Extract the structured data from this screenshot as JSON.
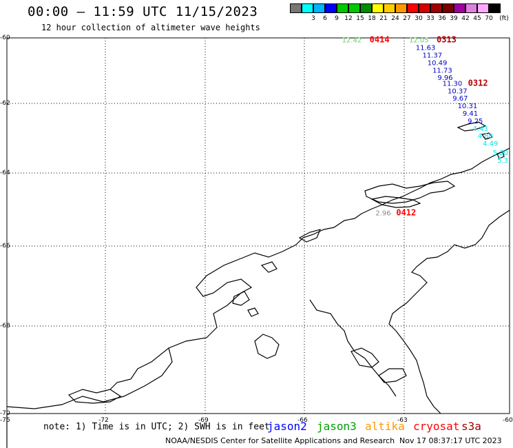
{
  "title": "00:00 – 11:59 UTC 11/15/2023",
  "subtitle": "12 hour collection of altimeter wave heights",
  "legend": {
    "unit": "(ft)",
    "swatches": [
      {
        "label": "",
        "color": "#777777"
      },
      {
        "label": "3",
        "color": "#00ffff"
      },
      {
        "label": "6",
        "color": "#00b4ff"
      },
      {
        "label": "9",
        "color": "#0000ff"
      },
      {
        "label": "12",
        "color": "#00c800"
      },
      {
        "label": "15",
        "color": "#00c800"
      },
      {
        "label": "18",
        "color": "#008c00"
      },
      {
        "label": "21",
        "color": "#ffff00"
      },
      {
        "label": "24",
        "color": "#ffcc00"
      },
      {
        "label": "27",
        "color": "#ff9900"
      },
      {
        "label": "30",
        "color": "#ff0000"
      },
      {
        "label": "33",
        "color": "#d20000"
      },
      {
        "label": "36",
        "color": "#a00000"
      },
      {
        "label": "39",
        "color": "#780000"
      },
      {
        "label": "42",
        "color": "#a000a0"
      },
      {
        "label": "45",
        "color": "#dc82dc"
      },
      {
        "label": "70",
        "color": "#ffaaff"
      },
      {
        "label": "",
        "color": "#000000"
      }
    ]
  },
  "axes": {
    "lat_labels": [
      "-60",
      "-62",
      "-64",
      "-66",
      "-68",
      "-70"
    ],
    "lon_labels": [
      "-75",
      "-72",
      "-69",
      "-66",
      "-63",
      "-60"
    ]
  },
  "tracks": [
    {
      "id": "0414",
      "color": "#ff0000",
      "points": [
        {
          "value": "12.42",
          "lon": -65.0,
          "lat": -60.05,
          "color": "#66cc66"
        }
      ]
    },
    {
      "id": "0313",
      "color": "#b40000",
      "points": [
        {
          "value": "12.05",
          "lon": -63.0,
          "lat": -60.05,
          "color": "#66cc66"
        },
        {
          "value": "11.63",
          "lon": -62.8,
          "lat": -60.25,
          "color": "#0000c8"
        },
        {
          "value": "11.37",
          "lon": -62.6,
          "lat": -60.45,
          "color": "#0000c8"
        },
        {
          "value": "10.49",
          "lon": -62.45,
          "lat": -60.65,
          "color": "#0000c8"
        },
        {
          "value": "11.73",
          "lon": -62.3,
          "lat": -60.85,
          "color": "#0000c8"
        },
        {
          "value": "9.96",
          "lon": -62.15,
          "lat": -61.05,
          "color": "#0000c8"
        }
      ]
    },
    {
      "id": "0312",
      "color": "#b40000",
      "points": [
        {
          "value": "11.30",
          "lon": -62.0,
          "lat": -61.2,
          "color": "#0000c8"
        },
        {
          "value": "10.37",
          "lon": -61.85,
          "lat": -61.4,
          "color": "#0000c8"
        },
        {
          "value": "9.67",
          "lon": -61.7,
          "lat": -61.6,
          "color": "#0000c8"
        },
        {
          "value": "10.31",
          "lon": -61.55,
          "lat": -61.8,
          "color": "#0000c8"
        },
        {
          "value": "9.41",
          "lon": -61.4,
          "lat": -62.0,
          "color": "#0000c8"
        },
        {
          "value": "9.25",
          "lon": -61.25,
          "lat": -62.2,
          "color": "#0000c8"
        },
        {
          "value": "4.43",
          "lon": -61.1,
          "lat": -62.4,
          "color": "#00e6e6"
        },
        {
          "value": "4.88",
          "lon": -60.95,
          "lat": -62.6,
          "color": "#00e6e6"
        },
        {
          "value": "4.49",
          "lon": -60.8,
          "lat": -62.8,
          "color": "#00e6e6"
        },
        {
          "value": "5.20",
          "lon": -60.5,
          "lat": -63.05,
          "color": "#00e6e6"
        },
        {
          "value": "5.3",
          "lon": -60.2,
          "lat": -63.25,
          "color": "#00e6e6"
        }
      ]
    },
    {
      "id": "0412",
      "color": "#ff0000",
      "points": [
        {
          "value": "2.96",
          "lon": -64.0,
          "lat": -64.65,
          "color": "#888888"
        }
      ]
    }
  ],
  "note": "note: 1) Time is in UTC; 2) SWH is in feet",
  "satellites": [
    {
      "name": "jason2",
      "color": "#0000ff"
    },
    {
      "name": "jason3",
      "color": "#00a000"
    },
    {
      "name": "altika",
      "color": "#ff9900"
    },
    {
      "name": "cryosat",
      "color": "#ff0000"
    },
    {
      "name": "s3a",
      "color": "#a00000"
    }
  ],
  "credit": "NOAA/NESDIS Center for Satellite Applications and Research",
  "timestamp": "Nov 17 08:37:17 UTC 2023"
}
